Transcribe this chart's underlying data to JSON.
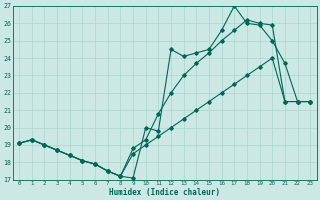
{
  "xlabel": "Humidex (Indice chaleur)",
  "bg_color": "#cce8e4",
  "grid_color": "#aad4cc",
  "line_color": "#006655",
  "xlim": [
    -0.5,
    23.5
  ],
  "ylim": [
    17,
    27
  ],
  "yticks": [
    17,
    18,
    19,
    20,
    21,
    22,
    23,
    24,
    25,
    26,
    27
  ],
  "xticks": [
    0,
    1,
    2,
    3,
    4,
    5,
    6,
    7,
    8,
    9,
    10,
    11,
    12,
    13,
    14,
    15,
    16,
    17,
    18,
    19,
    20,
    21,
    22,
    23
  ],
  "s1_x": [
    0,
    1,
    2,
    3,
    4,
    5,
    6,
    7,
    8,
    9,
    10,
    11,
    12,
    13,
    14,
    15,
    16,
    17,
    18,
    19,
    20,
    21,
    22,
    23
  ],
  "s1_y": [
    19.1,
    19.3,
    19.0,
    18.7,
    18.4,
    18.1,
    17.9,
    17.5,
    17.2,
    17.1,
    20.0,
    19.8,
    24.5,
    24.1,
    24.3,
    24.5,
    25.6,
    27.0,
    26.0,
    25.9,
    25.0,
    23.7,
    21.5,
    21.5
  ],
  "s2_x": [
    0,
    1,
    2,
    3,
    4,
    5,
    6,
    7,
    8,
    9,
    10,
    11,
    12,
    13,
    14,
    15,
    16,
    17,
    18,
    19,
    20,
    21,
    22,
    23
  ],
  "s2_y": [
    19.1,
    19.3,
    19.0,
    18.7,
    18.4,
    18.1,
    17.9,
    17.5,
    17.2,
    18.8,
    19.3,
    20.8,
    22.0,
    23.0,
    23.7,
    24.3,
    25.0,
    25.6,
    26.2,
    26.0,
    25.9,
    21.5,
    21.5,
    21.5
  ],
  "s3_x": [
    0,
    1,
    2,
    3,
    4,
    5,
    6,
    7,
    8,
    9,
    10,
    11,
    12,
    13,
    14,
    15,
    16,
    17,
    18,
    19,
    20,
    21,
    22,
    23
  ],
  "s3_y": [
    19.1,
    19.3,
    19.0,
    18.7,
    18.4,
    18.1,
    17.9,
    17.5,
    17.2,
    18.5,
    19.0,
    19.5,
    20.0,
    20.5,
    21.0,
    21.5,
    22.0,
    22.5,
    23.0,
    23.5,
    24.0,
    21.5,
    21.5,
    21.5
  ]
}
